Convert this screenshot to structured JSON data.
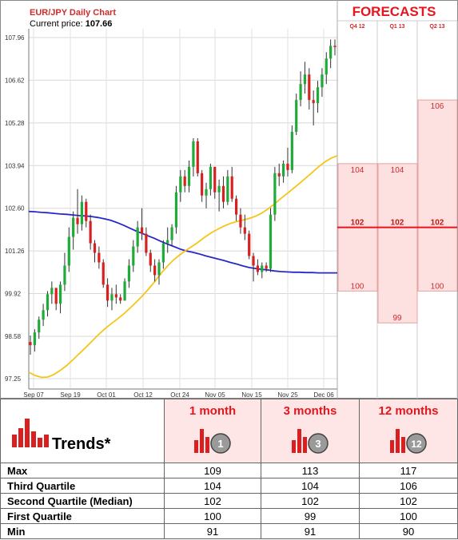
{
  "chart_data": {
    "type": "candlestick",
    "title": "EUR/JPY Daily Chart",
    "price_label": "Current price:",
    "price_value": "107.66",
    "y_ticks": [
      "107.96",
      "106.62",
      "105.28",
      "103.94",
      "102.60",
      "101.26",
      "99.92",
      "98.58",
      "97.25"
    ],
    "y_tick_values": [
      107.96,
      106.62,
      105.28,
      103.94,
      102.6,
      101.26,
      99.92,
      98.58,
      97.25
    ],
    "ylim": [
      97.25,
      107.96
    ],
    "x_ticks": [
      "Sep 07",
      "Sep 19",
      "Oct 01",
      "Oct 12",
      "Oct 24",
      "Nov 05",
      "Nov 15",
      "Nov 25",
      "Dec 06"
    ],
    "candles": [
      [
        98.4,
        98.6,
        98.0,
        98.3
      ],
      [
        98.3,
        98.8,
        98.1,
        98.7
      ],
      [
        98.7,
        99.2,
        98.5,
        99.1
      ],
      [
        99.1,
        99.6,
        98.9,
        99.4
      ],
      [
        99.4,
        100.0,
        99.2,
        99.9
      ],
      [
        99.9,
        100.3,
        99.6,
        100.1
      ],
      [
        100.1,
        100.1,
        99.4,
        99.6
      ],
      [
        99.6,
        100.3,
        99.3,
        100.2
      ],
      [
        100.2,
        101.2,
        100.0,
        100.8
      ],
      [
        100.8,
        102.0,
        100.6,
        101.7
      ],
      [
        101.7,
        102.5,
        101.3,
        102.3
      ],
      [
        102.3,
        103.2,
        101.8,
        102.1
      ],
      [
        102.1,
        103.0,
        101.9,
        102.8
      ],
      [
        102.8,
        102.9,
        102.0,
        102.2
      ],
      [
        102.2,
        102.4,
        101.3,
        101.5
      ],
      [
        101.5,
        101.6,
        100.9,
        101.2
      ],
      [
        101.2,
        101.4,
        100.7,
        100.9
      ],
      [
        100.9,
        101.0,
        100.1,
        100.2
      ],
      [
        100.2,
        100.4,
        99.5,
        99.7
      ],
      [
        99.7,
        100.1,
        99.4,
        99.9
      ],
      [
        99.9,
        100.2,
        99.6,
        99.8
      ],
      [
        99.8,
        99.9,
        99.6,
        99.7
      ],
      [
        99.7,
        100.4,
        99.7,
        100.3
      ],
      [
        100.3,
        101.0,
        100.1,
        100.8
      ],
      [
        100.8,
        101.6,
        100.6,
        101.4
      ],
      [
        101.4,
        102.2,
        101.2,
        102.0
      ],
      [
        102.0,
        102.6,
        101.6,
        101.8
      ],
      [
        101.8,
        102.0,
        101.1,
        101.2
      ],
      [
        101.2,
        101.3,
        100.6,
        100.8
      ],
      [
        100.8,
        101.0,
        100.3,
        100.5
      ],
      [
        100.5,
        101.0,
        100.2,
        100.9
      ],
      [
        100.9,
        101.6,
        100.7,
        101.5
      ],
      [
        101.5,
        102.0,
        101.2,
        101.6
      ],
      [
        101.6,
        102.1,
        101.4,
        102.0
      ],
      [
        102.0,
        103.3,
        101.8,
        103.1
      ],
      [
        103.1,
        103.8,
        102.8,
        103.6
      ],
      [
        103.6,
        103.8,
        103.1,
        103.3
      ],
      [
        103.3,
        104.1,
        103.1,
        103.9
      ],
      [
        103.9,
        104.8,
        103.6,
        104.7
      ],
      [
        104.7,
        104.8,
        103.6,
        103.7
      ],
      [
        103.7,
        103.8,
        102.8,
        103.0
      ],
      [
        103.0,
        103.4,
        102.6,
        103.2
      ],
      [
        103.2,
        104.0,
        103.0,
        103.9
      ],
      [
        103.9,
        103.9,
        102.9,
        103.1
      ],
      [
        103.1,
        103.5,
        102.5,
        103.3
      ],
      [
        103.3,
        103.6,
        102.6,
        102.8
      ],
      [
        102.8,
        103.8,
        102.7,
        103.6
      ],
      [
        103.6,
        103.9,
        102.8,
        102.9
      ],
      [
        102.9,
        103.0,
        102.2,
        102.4
      ],
      [
        102.4,
        102.6,
        101.8,
        102.0
      ],
      [
        102.0,
        102.4,
        101.6,
        101.8
      ],
      [
        101.8,
        101.9,
        101.0,
        101.1
      ],
      [
        101.1,
        101.2,
        100.3,
        100.8
      ],
      [
        100.8,
        101.0,
        100.5,
        100.6
      ],
      [
        100.6,
        100.9,
        100.4,
        100.8
      ],
      [
        100.8,
        100.9,
        100.6,
        100.7
      ],
      [
        100.7,
        102.6,
        100.6,
        102.4
      ],
      [
        102.4,
        103.9,
        102.2,
        103.7
      ],
      [
        103.7,
        104.0,
        103.3,
        103.6
      ],
      [
        103.6,
        104.1,
        103.4,
        104.0
      ],
      [
        104.0,
        104.5,
        103.6,
        103.8
      ],
      [
        103.8,
        105.2,
        103.7,
        105.0
      ],
      [
        105.0,
        106.2,
        104.9,
        106.0
      ],
      [
        106.0,
        106.9,
        105.8,
        106.5
      ],
      [
        106.5,
        107.2,
        106.2,
        106.8
      ],
      [
        106.8,
        107.0,
        105.7,
        106.0
      ],
      [
        106.0,
        106.3,
        105.2,
        105.9
      ],
      [
        105.9,
        106.6,
        105.6,
        106.4
      ],
      [
        106.4,
        107.0,
        106.1,
        106.8
      ],
      [
        106.8,
        107.5,
        106.5,
        107.3
      ],
      [
        107.3,
        107.9,
        107.0,
        107.7
      ],
      [
        107.7,
        107.9,
        107.4,
        107.66
      ]
    ],
    "ma_blue": [
      102.5,
      102.49,
      102.47,
      102.46,
      102.44,
      102.42,
      102.41,
      102.39,
      102.37,
      102.36,
      102.34,
      102.31,
      102.27,
      102.22,
      102.15,
      102.07,
      101.98,
      101.89,
      101.81,
      101.73,
      101.65,
      101.56,
      101.48,
      101.4,
      101.32,
      101.26,
      101.22,
      101.17,
      101.11,
      101.06,
      101.01,
      100.96,
      100.9,
      100.85,
      100.79,
      100.74,
      100.71,
      100.68,
      100.66,
      100.63,
      100.61,
      100.6,
      100.59,
      100.59,
      100.58,
      100.58,
      100.57,
      100.57,
      100.57,
      100.57
    ],
    "ma_yellow": [
      97.45,
      97.35,
      97.29,
      97.3,
      97.38,
      97.51,
      97.66,
      97.84,
      98.03,
      98.22,
      98.42,
      98.62,
      98.8,
      98.96,
      99.11,
      99.27,
      99.45,
      99.64,
      99.84,
      100.06,
      100.3,
      100.55,
      100.78,
      100.98,
      101.14,
      101.28,
      101.41,
      101.55,
      101.7,
      101.83,
      101.94,
      102.04,
      102.12,
      102.18,
      102.23,
      102.28,
      102.35,
      102.45,
      102.58,
      102.73,
      102.9,
      103.06,
      103.22,
      103.38,
      103.55,
      103.72,
      103.9,
      104.05,
      104.17,
      104.25
    ],
    "forecasts": {
      "title": "FORECASTS",
      "periods": [
        "Q4 12",
        "Q1 13",
        "Q2 13"
      ],
      "upper": [
        104,
        104,
        106
      ],
      "median": [
        102,
        102,
        102
      ],
      "lower": [
        100,
        99,
        100
      ],
      "colors": {
        "fill": "#fde1e1",
        "line": "#e8141e",
        "text": "#d12a2a",
        "blue": "#2828c8",
        "yellow": "#f5c518",
        "up": "#1faa3a",
        "down": "#d92020"
      }
    }
  },
  "trends": {
    "label": "Trends*",
    "columns": [
      {
        "title": "1 month",
        "icon_num": "1"
      },
      {
        "title": "3 months",
        "icon_num": "3"
      },
      {
        "title": "12 months",
        "icon_num": "12"
      }
    ],
    "rows": [
      {
        "name": "Max",
        "values": [
          "109",
          "113",
          "117"
        ]
      },
      {
        "name": "Third Quartile",
        "values": [
          "104",
          "104",
          "106"
        ]
      },
      {
        "name": "Second Quartile (Median)",
        "values": [
          "102",
          "102",
          "102"
        ]
      },
      {
        "name": "First Quartile",
        "values": [
          "100",
          "99",
          "100"
        ]
      },
      {
        "name": "Min",
        "values": [
          "91",
          "91",
          "90"
        ]
      }
    ]
  }
}
